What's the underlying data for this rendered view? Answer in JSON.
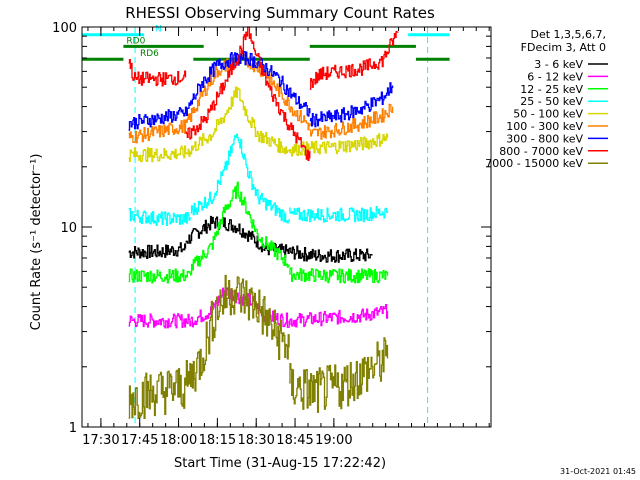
{
  "chart_data": {
    "type": "line",
    "title": "RHESSI Observing Summary Count Rates",
    "xlabel": "Start Time (31-Aug-15 17:22:42)",
    "ylabel": "Count Rate (s⁻¹ detector⁻¹)",
    "yscale": "log",
    "ylim": [
      1,
      100
    ],
    "xlim_minutes": [
      0,
      158
    ],
    "y_ticks": [
      "1",
      "10",
      "100"
    ],
    "x_ticks": [
      {
        "label": "17:30",
        "minute": 7.3
      },
      {
        "label": "17:45",
        "minute": 22.3
      },
      {
        "label": "18:00",
        "minute": 37.3
      },
      {
        "label": "18:15",
        "minute": 52.3
      },
      {
        "label": "18:30",
        "minute": 67.3
      },
      {
        "label": "18:45",
        "minute": 82.3
      },
      {
        "label": "19:00",
        "minute": 97.3
      }
    ],
    "legend_header": [
      "Det 1,3,5,6,7,",
      "FDecim 3, Att 0"
    ],
    "legend_position": "right",
    "footer_date": "31-Oct-2021 01:45",
    "flags": [
      {
        "name": "N",
        "color": "#00ffff",
        "segments": [
          [
            0,
            24
          ],
          [
            126,
            142
          ]
        ],
        "level": 91.5
      },
      {
        "name": "RD0",
        "color": "#008000",
        "segments": [
          [
            16,
            47
          ],
          [
            88,
            129
          ]
        ],
        "level": 80
      },
      {
        "name": "RD6",
        "color": "#008000",
        "segments": [
          [
            0,
            16
          ],
          [
            43,
            88
          ],
          [
            129,
            142
          ]
        ],
        "level": 69
      }
    ],
    "saa_lines_minutes": [
      20.5,
      133.5
    ],
    "night_gap_minutes": [
      128,
      160
    ],
    "series": [
      {
        "name": "3 - 6 keV",
        "color": "#000000",
        "segments": [
          {
            "x": [
              18,
              30,
              40
            ],
            "y": [
              7.5,
              7.5,
              7.8
            ]
          },
          {
            "x": [
              40,
              45,
              50,
              55,
              60,
              65,
              70
            ],
            "y": [
              8.5,
              9.5,
              10.5,
              10.5,
              10,
              9,
              8
            ]
          },
          {
            "x": [
              70,
              80,
              90,
              100,
              112
            ],
            "y": [
              7.8,
              7.5,
              7.2,
              7.2,
              7.2
            ]
          }
        ]
      },
      {
        "name": "6 - 12 keV",
        "color": "#ff00ff",
        "segments": [
          {
            "x": [
              18,
              30,
              42
            ],
            "y": [
              3.4,
              3.4,
              3.4
            ]
          },
          {
            "x": [
              42,
              50,
              55,
              60,
              66,
              70,
              80
            ],
            "y": [
              3.4,
              3.8,
              4.8,
              4.5,
              4.2,
              3.6,
              3.4
            ]
          },
          {
            "x": [
              80,
              95,
              108,
              118
            ],
            "y": [
              3.4,
              3.5,
              3.6,
              3.8
            ]
          }
        ]
      },
      {
        "name": "12 - 25 keV",
        "color": "#00ff00",
        "segments": [
          {
            "x": [
              18,
              30,
              42
            ],
            "y": [
              5.7,
              5.7,
              5.7
            ]
          },
          {
            "x": [
              42,
              50,
              55,
              60,
              64,
              68,
              80
            ],
            "y": [
              6.2,
              8,
              12,
              15.5,
              12,
              9,
              6.5
            ]
          },
          {
            "x": [
              80,
              95,
              108,
              118
            ],
            "y": [
              5.8,
              5.7,
              5.7,
              5.7
            ]
          }
        ]
      },
      {
        "name": "25 - 50 keV",
        "color": "#00ffff",
        "segments": [
          {
            "x": [
              18,
              30,
              42
            ],
            "y": [
              11.5,
              11,
              11
            ]
          },
          {
            "x": [
              42,
              50,
              55,
              60,
              64,
              68,
              80
            ],
            "y": [
              12,
              14,
              19,
              30,
              19,
              14,
              11
            ]
          },
          {
            "x": [
              80,
              95,
              108,
              118
            ],
            "y": [
              11.5,
              11.5,
              11.5,
              12
            ]
          }
        ]
      },
      {
        "name": "50 - 100 keV",
        "color": "#d6d600",
        "segments": [
          {
            "x": [
              18,
              30,
              40,
              50,
              55,
              60,
              64,
              68,
              80
            ],
            "y": [
              23,
              23,
              23.5,
              29,
              36,
              48,
              36,
              29,
              24
            ]
          },
          {
            "x": [
              80,
              95,
              108,
              118
            ],
            "y": [
              24.5,
              25,
              26,
              28
            ]
          }
        ]
      },
      {
        "name": "100 - 300 keV",
        "color": "#ff8000",
        "segments": [
          {
            "x": [
              18,
              30,
              40,
              46,
              52,
              58,
              64,
              70,
              76,
              82,
              88
            ],
            "y": [
              28,
              30,
              32,
              45,
              60,
              67,
              68,
              60,
              48,
              38,
              32
            ]
          },
          {
            "x": [
              88,
              100,
              108,
              116,
              120
            ],
            "y": [
              29,
              31,
              33,
              36,
              40
            ]
          }
        ]
      },
      {
        "name": "300 - 800 keV",
        "color": "#0000ff",
        "segments": [
          {
            "x": [
              18,
              30,
              40,
              46,
              52,
              58,
              64,
              70,
              76,
              82,
              88
            ],
            "y": [
              33,
              35,
              37,
              52,
              64,
              69,
              70,
              64,
              55,
              44,
              37
            ]
          },
          {
            "x": [
              88,
              100,
              108,
              116,
              120
            ],
            "y": [
              34,
              36,
              39,
              44,
              51
            ]
          }
        ]
      },
      {
        "name": "800 - 7000 keV",
        "color": "#ff0000",
        "segments": [
          {
            "x": [
              18,
              20,
              32,
              40
            ],
            "y": [
              70,
              55,
              55,
              56
            ]
          },
          {
            "x": [
              40,
              48,
              56,
              62,
              64,
              66,
              72,
              80,
              88
            ],
            "y": [
              28,
              35,
              55,
              80,
              100,
              80,
              50,
              32,
              22
            ]
          },
          {
            "x": [
              88,
              92,
              100,
              108,
              116,
              122
            ],
            "y": [
              52,
              58,
              60,
              62,
              68,
              95
            ]
          }
        ]
      },
      {
        "name": "7000 - 15000 keV",
        "color": "#808000",
        "segments": [
          {
            "x": [
              18,
              30,
              40,
              46,
              52,
              58,
              62,
              68,
              74,
              80
            ],
            "y": [
              1.4,
              1.5,
              1.6,
              2.2,
              4.0,
              4.8,
              4.5,
              4.0,
              3.0,
              2.5
            ]
          },
          {
            "x": [
              80,
              90,
              100,
              110,
              118
            ],
            "y": [
              1.6,
              1.5,
              1.6,
              1.9,
              2.2
            ]
          }
        ]
      }
    ]
  }
}
